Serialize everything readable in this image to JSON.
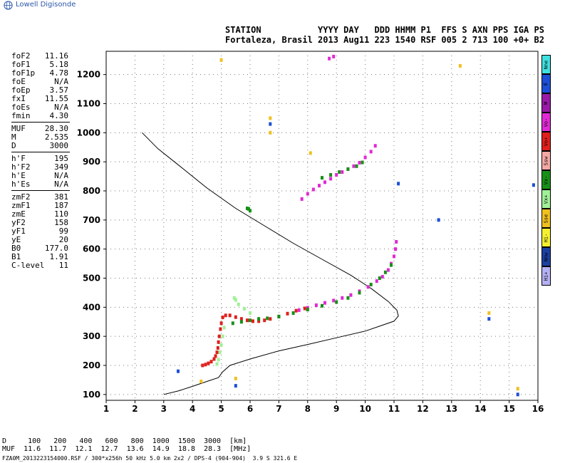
{
  "header": {
    "logo_text": "Lowell Digisonde",
    "line1": "STATION           YYYY DAY   DDD HHMM P1  FFS S AXN PPS IGA PS",
    "line2": "Fortaleza, Brasil 2013 Aug11 223 1540 RSF 005 2 713 100 +0+ B2"
  },
  "params_groups": [
    [
      {
        "label": "foF2",
        "value": "11.16"
      },
      {
        "label": "foF1",
        "value": "5.18"
      },
      {
        "label": "foF1p",
        "value": "4.78"
      },
      {
        "label": "foE",
        "value": "N/A"
      },
      {
        "label": "foEp",
        "value": "3.57"
      },
      {
        "label": "fxI",
        "value": "11.55"
      },
      {
        "label": "foEs",
        "value": "N/A"
      },
      {
        "label": "fmin",
        "value": "4.30"
      }
    ],
    [
      {
        "label": "MUF",
        "value": "28.30"
      },
      {
        "label": "M",
        "value": "2.535"
      },
      {
        "label": "D",
        "value": "3000"
      }
    ],
    [
      {
        "label": "h'F",
        "value": "195"
      },
      {
        "label": "h'F2",
        "value": "349"
      },
      {
        "label": "h'E",
        "value": "N/A"
      },
      {
        "label": "h'Es",
        "value": "N/A"
      }
    ],
    [
      {
        "label": "zmF2",
        "value": "381"
      },
      {
        "label": "zmF1",
        "value": "187"
      },
      {
        "label": "zmE",
        "value": "110"
      },
      {
        "label": "yF2",
        "value": "158"
      },
      {
        "label": "yF1",
        "value": "99"
      },
      {
        "label": "yE",
        "value": "20"
      },
      {
        "label": "B0",
        "value": "177.0"
      },
      {
        "label": "B1",
        "value": "1.91"
      },
      {
        "label": "C-level",
        "value": "11"
      }
    ]
  ],
  "legend": [
    {
      "label": "Nne",
      "color": "#3fe0e0"
    },
    {
      "label": "E",
      "color": "#1c4fd6"
    },
    {
      "label": "W",
      "color": "#9a1aa8"
    },
    {
      "label": "Vo-",
      "color": "#e02ad4"
    },
    {
      "label": "Vo+",
      "color": "#e0201c"
    },
    {
      "label": "Ssw",
      "color": "#f4a8a4"
    },
    {
      "label": "Vx-",
      "color": "#189018"
    },
    {
      "label": "Vx+",
      "color": "#a0f098"
    },
    {
      "label": "Sse",
      "color": "#f0c020"
    },
    {
      "label": "Hi-",
      "color": "#f4f030"
    },
    {
      "label": "Nnw",
      "color": "#1c40a0"
    },
    {
      "label": "Hi+",
      "color": "#b4b0f4"
    }
  ],
  "footer": {
    "d_row": "D     100   200   400   600   800  1000  1500  3000  [km]",
    "muf_row": "MUF  11.6  11.7  12.1  12.7  13.6  14.9  18.8  28.3  [MHz]",
    "file_row": "FZA0M_2013223154000.RSF / 300*x256h 50 kHz 5.0 km 2x2 / DPS-4 (904-904)  3.9 S 321.6 E"
  },
  "chart_data": {
    "type": "scatter",
    "xlim": [
      1,
      16
    ],
    "ylim": [
      80,
      1280
    ],
    "x_ticks": [
      "1",
      "2",
      "3",
      "4",
      "5",
      "6",
      "7",
      "8",
      "9",
      "10",
      "11",
      "12",
      "13",
      "14",
      "15",
      "16"
    ],
    "y_ticks": [
      "100",
      "200",
      "300",
      "400",
      "500",
      "600",
      "700",
      "800",
      "900",
      "1000",
      "1100",
      "1200"
    ],
    "grid": true,
    "profile_line": [
      [
        3.0,
        100
      ],
      [
        3.5,
        112
      ],
      [
        4.0,
        128
      ],
      [
        4.5,
        145
      ],
      [
        4.9,
        158
      ],
      [
        5.05,
        178
      ],
      [
        5.3,
        200
      ],
      [
        6.0,
        222
      ],
      [
        7.0,
        250
      ],
      [
        8.0,
        272
      ],
      [
        9.0,
        295
      ],
      [
        10.0,
        318
      ],
      [
        10.5,
        335
      ],
      [
        11.0,
        352
      ],
      [
        11.15,
        370
      ],
      [
        11.1,
        390
      ],
      [
        10.8,
        420
      ],
      [
        10.2,
        465
      ],
      [
        9.5,
        510
      ],
      [
        8.5,
        565
      ],
      [
        7.5,
        620
      ],
      [
        6.5,
        680
      ],
      [
        5.5,
        740
      ],
      [
        4.5,
        810
      ],
      [
        3.5,
        890
      ],
      [
        2.8,
        945
      ],
      [
        2.25,
        1000
      ]
    ],
    "series": [
      {
        "color": "#e0201c",
        "points": [
          [
            4.35,
            200
          ],
          [
            4.45,
            203
          ],
          [
            4.55,
            207
          ],
          [
            4.65,
            213
          ],
          [
            4.75,
            222
          ],
          [
            4.8,
            232
          ],
          [
            4.85,
            245
          ],
          [
            4.88,
            260
          ],
          [
            4.9,
            280
          ],
          [
            4.93,
            300
          ],
          [
            4.97,
            325
          ],
          [
            5.0,
            345
          ],
          [
            5.05,
            365
          ],
          [
            5.15,
            372
          ],
          [
            5.3,
            372
          ],
          [
            5.5,
            366
          ],
          [
            5.7,
            360
          ],
          [
            5.9,
            355
          ],
          [
            6.1,
            352
          ],
          [
            6.3,
            352
          ],
          [
            6.5,
            355
          ],
          [
            6.7,
            360
          ],
          [
            7.0,
            368
          ],
          [
            7.3,
            378
          ],
          [
            7.6,
            388
          ],
          [
            7.9,
            396
          ]
        ]
      },
      {
        "color": "#e02ad4",
        "points": [
          [
            7.7,
            390
          ],
          [
            8.0,
            398
          ],
          [
            8.3,
            407
          ],
          [
            8.6,
            415
          ],
          [
            8.9,
            423
          ],
          [
            9.2,
            432
          ],
          [
            9.5,
            442
          ],
          [
            9.8,
            455
          ],
          [
            10.1,
            470
          ],
          [
            10.4,
            490
          ],
          [
            10.6,
            505
          ],
          [
            10.8,
            528
          ],
          [
            10.9,
            550
          ],
          [
            11.0,
            575
          ],
          [
            11.05,
            600
          ],
          [
            11.08,
            625
          ],
          [
            7.8,
            772
          ],
          [
            8.0,
            790
          ],
          [
            8.2,
            805
          ],
          [
            8.4,
            818
          ],
          [
            8.6,
            830
          ],
          [
            8.8,
            842
          ],
          [
            9.0,
            855
          ],
          [
            9.2,
            865
          ],
          [
            9.4,
            875
          ],
          [
            9.6,
            885
          ],
          [
            9.8,
            897
          ],
          [
            10.0,
            915
          ],
          [
            10.2,
            935
          ],
          [
            10.35,
            955
          ],
          [
            8.75,
            1255
          ],
          [
            8.9,
            1262
          ]
        ]
      },
      {
        "color": "#189018",
        "points": [
          [
            5.4,
            345
          ],
          [
            5.7,
            350
          ],
          [
            6.0,
            355
          ],
          [
            6.3,
            360
          ],
          [
            6.6,
            362
          ],
          [
            7.0,
            368
          ],
          [
            7.5,
            380
          ],
          [
            8.0,
            392
          ],
          [
            8.5,
            405
          ],
          [
            9.0,
            418
          ],
          [
            9.4,
            432
          ],
          [
            9.8,
            450
          ],
          [
            10.2,
            478
          ],
          [
            10.5,
            500
          ],
          [
            10.7,
            520
          ],
          [
            10.9,
            545
          ],
          [
            8.5,
            845
          ],
          [
            8.8,
            855
          ],
          [
            9.1,
            865
          ],
          [
            9.4,
            875
          ],
          [
            9.7,
            885
          ],
          [
            9.9,
            898
          ],
          [
            5.9,
            740
          ],
          [
            5.95,
            738
          ],
          [
            6.0,
            732
          ]
        ]
      },
      {
        "color": "#a0f098",
        "points": [
          [
            5.1,
            330
          ],
          [
            5.05,
            300
          ],
          [
            5.0,
            270
          ],
          [
            4.95,
            245
          ],
          [
            4.9,
            220
          ],
          [
            4.85,
            205
          ],
          [
            5.6,
            410
          ],
          [
            5.8,
            395
          ],
          [
            6.0,
            380
          ],
          [
            5.5,
            425
          ],
          [
            5.45,
            432
          ]
        ]
      },
      {
        "color": "#f0c020",
        "points": [
          [
            6.7,
            1050
          ],
          [
            6.7,
            1000
          ],
          [
            8.1,
            930
          ],
          [
            13.3,
            1230
          ],
          [
            14.3,
            380
          ],
          [
            15.3,
            120
          ],
          [
            4.3,
            145
          ],
          [
            5.5,
            155
          ],
          [
            5.0,
            1250
          ]
        ]
      },
      {
        "color": "#1c4fd6",
        "points": [
          [
            15.85,
            820
          ],
          [
            15.3,
            100
          ],
          [
            3.5,
            180
          ],
          [
            5.5,
            130
          ],
          [
            6.7,
            1030
          ],
          [
            14.3,
            360
          ],
          [
            12.55,
            700
          ],
          [
            11.15,
            825
          ]
        ]
      }
    ]
  }
}
